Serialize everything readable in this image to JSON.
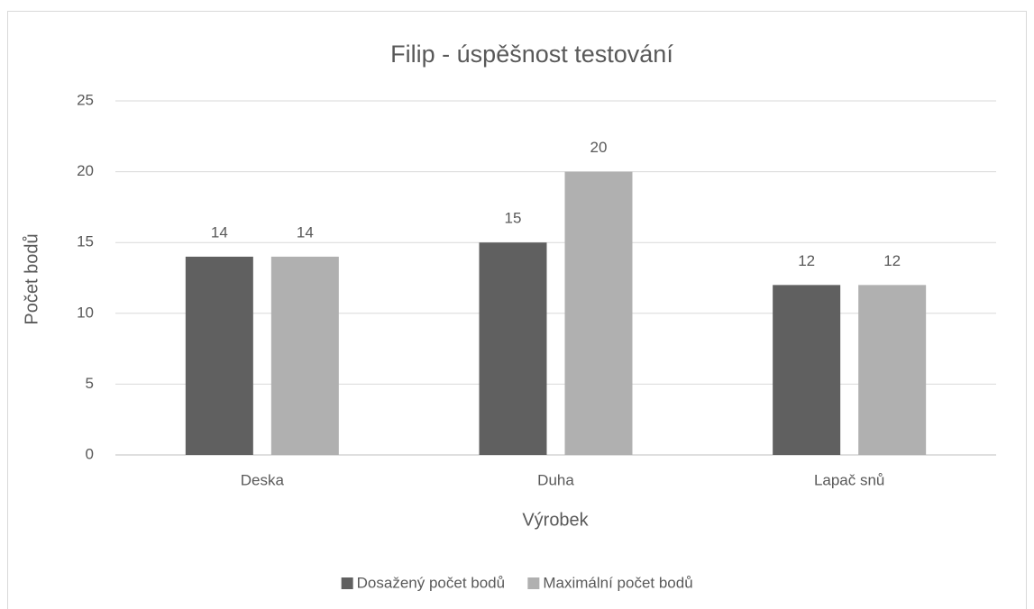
{
  "chart_data": {
    "type": "bar",
    "title": "Filip - úspěšnost testování",
    "x_label": "Výrobek",
    "y_label": "Počet bodů",
    "categories": [
      "Deska",
      "Duha",
      "Lapač snů"
    ],
    "series": [
      {
        "name": "Dosažený počet bodů",
        "color": "#606060",
        "values": [
          14,
          15,
          12
        ]
      },
      {
        "name": "Maximální počet bodů",
        "color": "#b0b0b0",
        "values": [
          14,
          20,
          12
        ]
      }
    ],
    "ylim": [
      0,
      25
    ],
    "yticks": [
      0,
      5,
      10,
      15,
      20,
      25
    ],
    "grid": true,
    "legend": "bottom"
  }
}
